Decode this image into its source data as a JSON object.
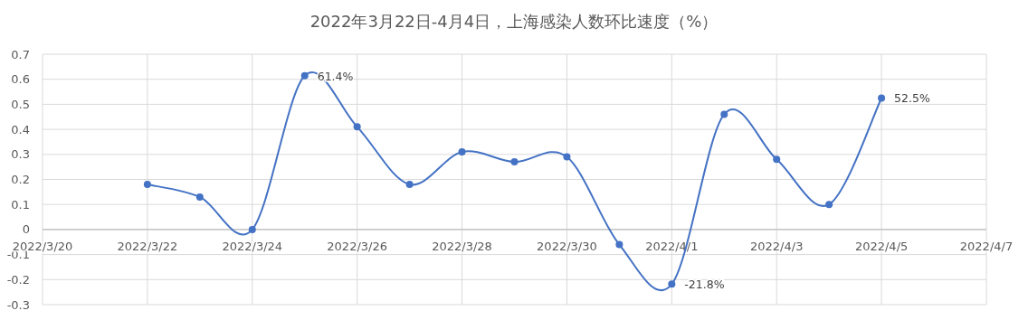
{
  "chart_data": {
    "type": "line",
    "title": "2022年3月22日-4月4日，上海感染人数环比速度（%）",
    "x": [
      "2022-03-22",
      "2022-03-23",
      "2022-03-24",
      "2022-03-25",
      "2022-03-26",
      "2022-03-27",
      "2022-03-28",
      "2022-03-29",
      "2022-03-30",
      "2022-03-31",
      "2022-04-01",
      "2022-04-02",
      "2022-04-03",
      "2022-04-04",
      "2022-04-05"
    ],
    "series": [
      {
        "color": "#4472c4",
        "values": [
          0.18,
          0.13,
          0.0,
          0.614,
          0.41,
          0.18,
          0.31,
          0.27,
          0.29,
          -0.06,
          -0.218,
          0.46,
          0.28,
          0.1,
          0.525
        ],
        "value_labels": [
          null,
          null,
          null,
          "61.4%",
          null,
          null,
          null,
          null,
          null,
          null,
          "-21.8%",
          null,
          null,
          null,
          "52.5%"
        ]
      }
    ],
    "xlim": [
      "2022-03-20",
      "2022-04-07"
    ],
    "xticks": [
      {
        "value": "2022-03-20",
        "label": "2022/3/20"
      },
      {
        "value": "2022-03-22",
        "label": "2022/3/22"
      },
      {
        "value": "2022-03-24",
        "label": "2022/3/24"
      },
      {
        "value": "2022-03-26",
        "label": "2022/3/26"
      },
      {
        "value": "2022-03-28",
        "label": "2022/3/28"
      },
      {
        "value": "2022-03-30",
        "label": "2022/3/30"
      },
      {
        "value": "2022-04-01",
        "label": "2022/4/1"
      },
      {
        "value": "2022-04-03",
        "label": "2022/4/3"
      },
      {
        "value": "2022-04-05",
        "label": "2022/4/5"
      },
      {
        "value": "2022-04-07",
        "label": "2022/4/7"
      }
    ],
    "ylim": [
      -0.3,
      0.7
    ],
    "yticks": [
      {
        "value": -0.3,
        "label": "-0.3"
      },
      {
        "value": -0.2,
        "label": "-0.2"
      },
      {
        "value": -0.1,
        "label": "-0.1"
      },
      0,
      {
        "value": 0.1,
        "label": "0.1"
      },
      {
        "value": 0.2,
        "label": "0.2"
      },
      {
        "value": 0.3,
        "label": "0.3"
      },
      {
        "value": 0.4,
        "label": "0.4"
      },
      {
        "value": 0.5,
        "label": "0.5"
      },
      {
        "value": 0.6,
        "label": "0.6"
      },
      {
        "value": 0.7,
        "label": "0.7"
      }
    ],
    "grid": true,
    "marker": "circle",
    "line_style": "solid"
  }
}
